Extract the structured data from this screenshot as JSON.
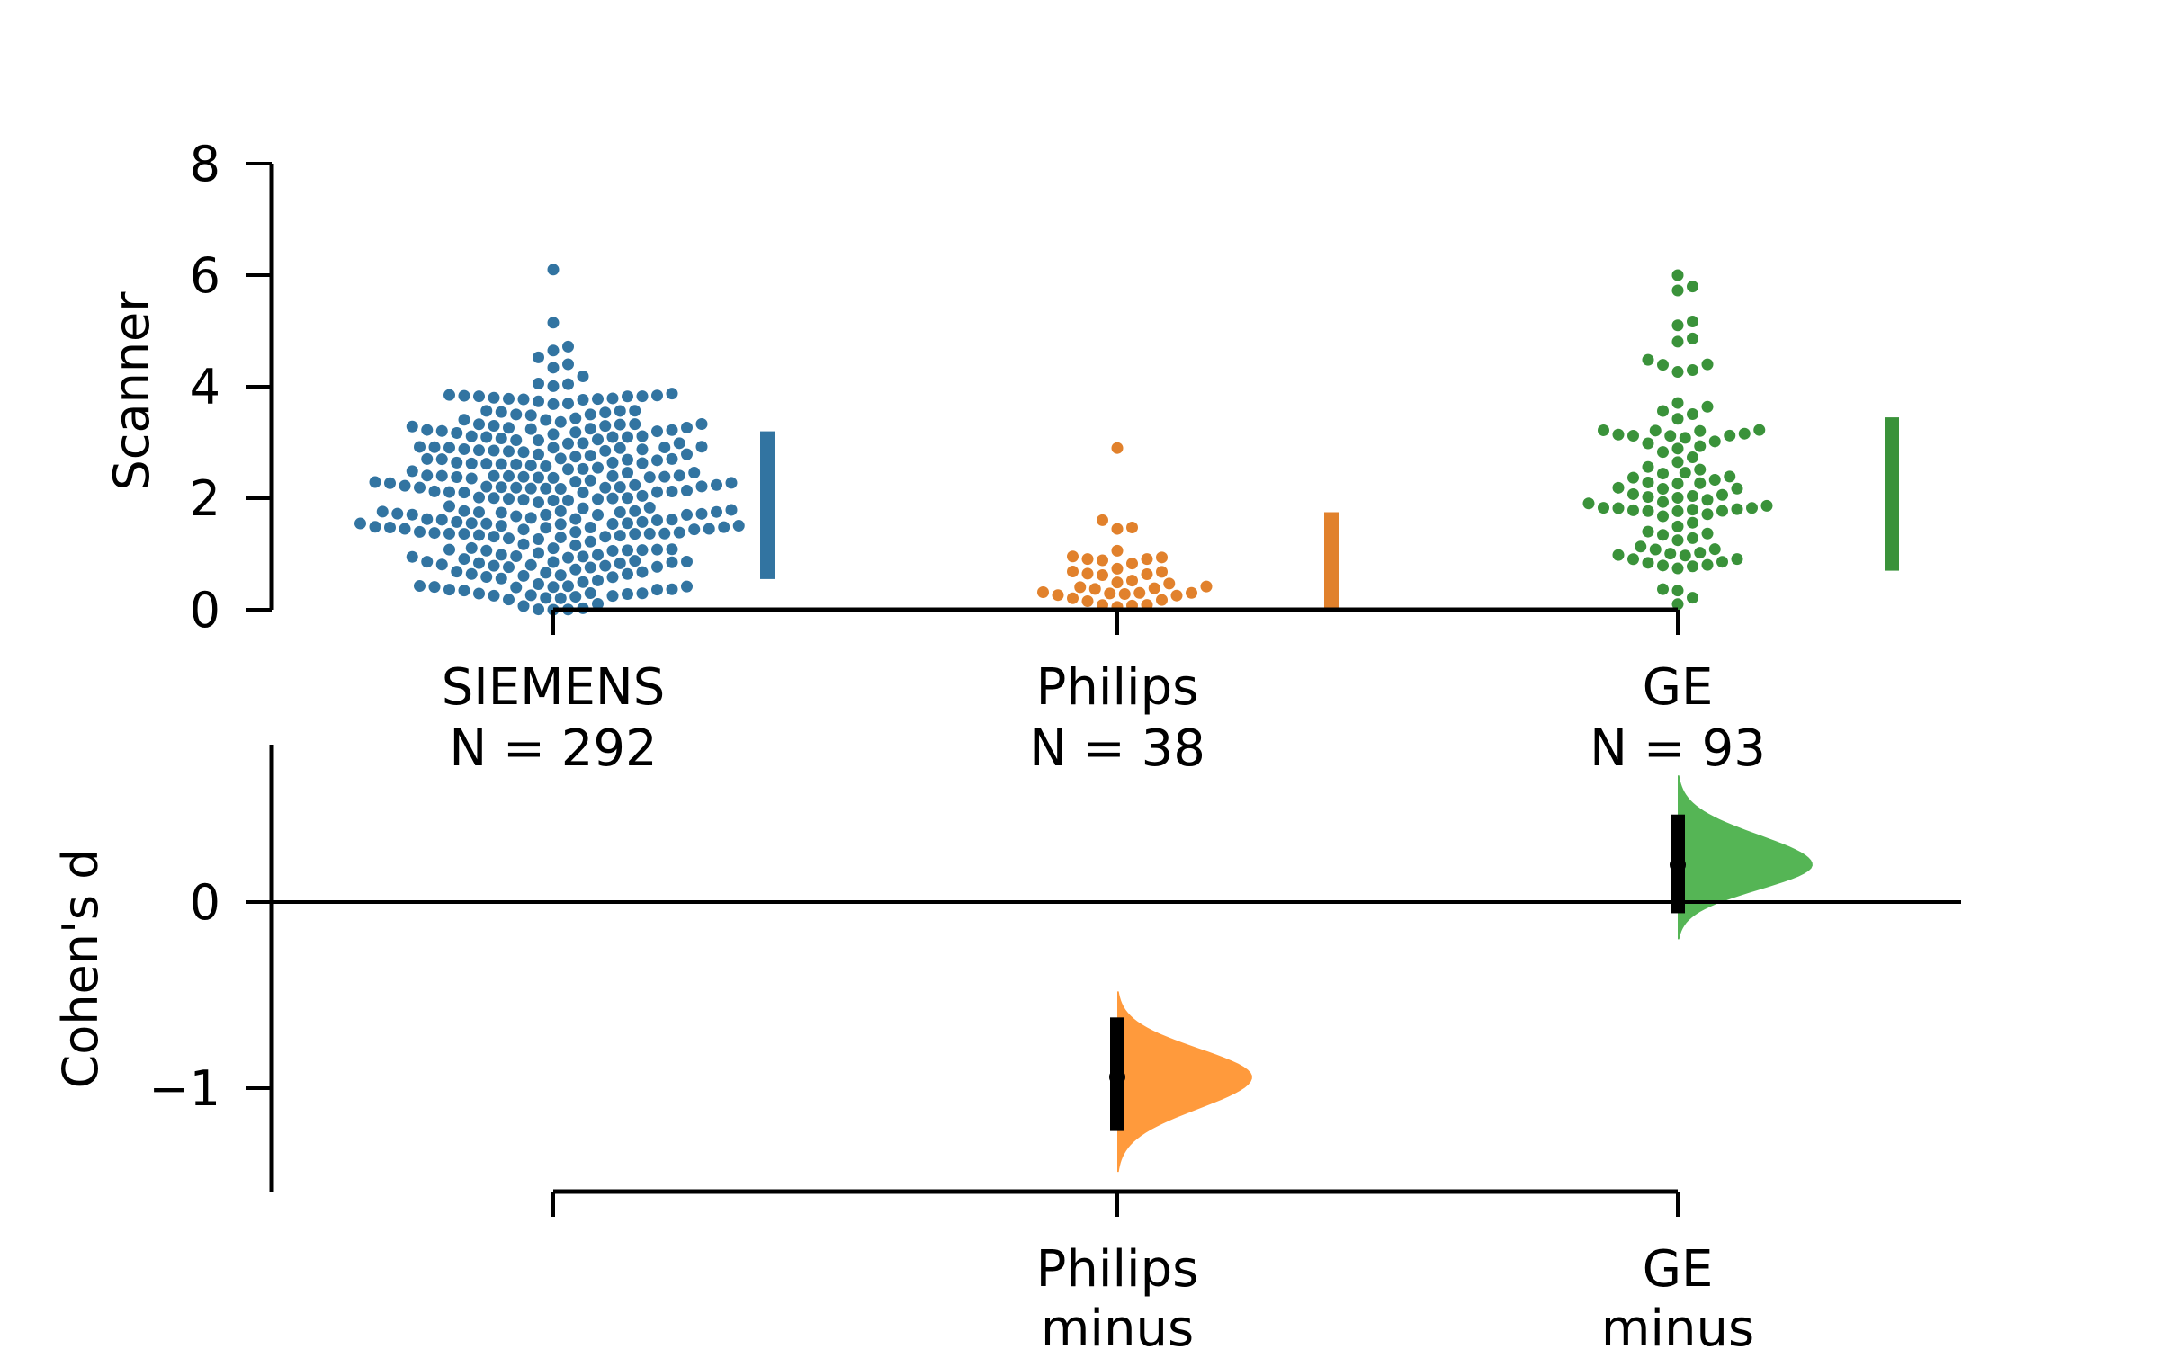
{
  "chart_data": [
    {
      "type": "swarm",
      "ylabel": "Scanner",
      "ylim": [
        0,
        8
      ],
      "yticks": [
        0,
        2,
        4,
        6,
        8
      ],
      "groups": [
        {
          "name": "SIEMENS",
          "n_label": "N = 292",
          "n": 292,
          "color": "#3274a1",
          "min": 0.0,
          "max": 6.1,
          "mean": 1.85,
          "sd": 1.32,
          "spread": 1.0
        },
        {
          "name": "Philips",
          "n_label": "N = 38",
          "n": 38,
          "color": "#e1812c",
          "min": 0.05,
          "max": 2.9,
          "mean": 0.55,
          "sd": 0.75,
          "spread": 0.5
        },
        {
          "name": "GE",
          "n_label": "N = 93",
          "n": 93,
          "color": "#3a923a",
          "min": 0.1,
          "max": 6.0,
          "mean": 2.05,
          "sd": 1.35,
          "spread": 0.7
        }
      ],
      "gap_bars": [
        {
          "group": "SIEMENS",
          "low": 0.55,
          "high": 3.2
        },
        {
          "group": "Philips",
          "low": 0.0,
          "high": 1.75
        },
        {
          "group": "GE",
          "low": 0.7,
          "high": 3.45
        }
      ]
    },
    {
      "type": "estimation",
      "ylabel": "Cohen's d",
      "ylim": [
        -1.55,
        0.8
      ],
      "yticks": [
        0,
        -1
      ],
      "ytick_labels": [
        "0",
        "−1"
      ],
      "contrasts": [
        {
          "name": "Philips",
          "label_lines": [
            "Philips",
            "minus"
          ],
          "color": "#ff9a3c",
          "estimate": -0.94,
          "ci_low": -1.23,
          "ci_high": -0.62,
          "dist_min": -1.45,
          "dist_max": -0.48
        },
        {
          "name": "GE",
          "label_lines": [
            "GE",
            "minus"
          ],
          "color": "#55b555",
          "estimate": 0.2,
          "ci_low": -0.06,
          "ci_high": 0.47,
          "dist_min": -0.2,
          "dist_max": 0.68
        }
      ]
    }
  ]
}
